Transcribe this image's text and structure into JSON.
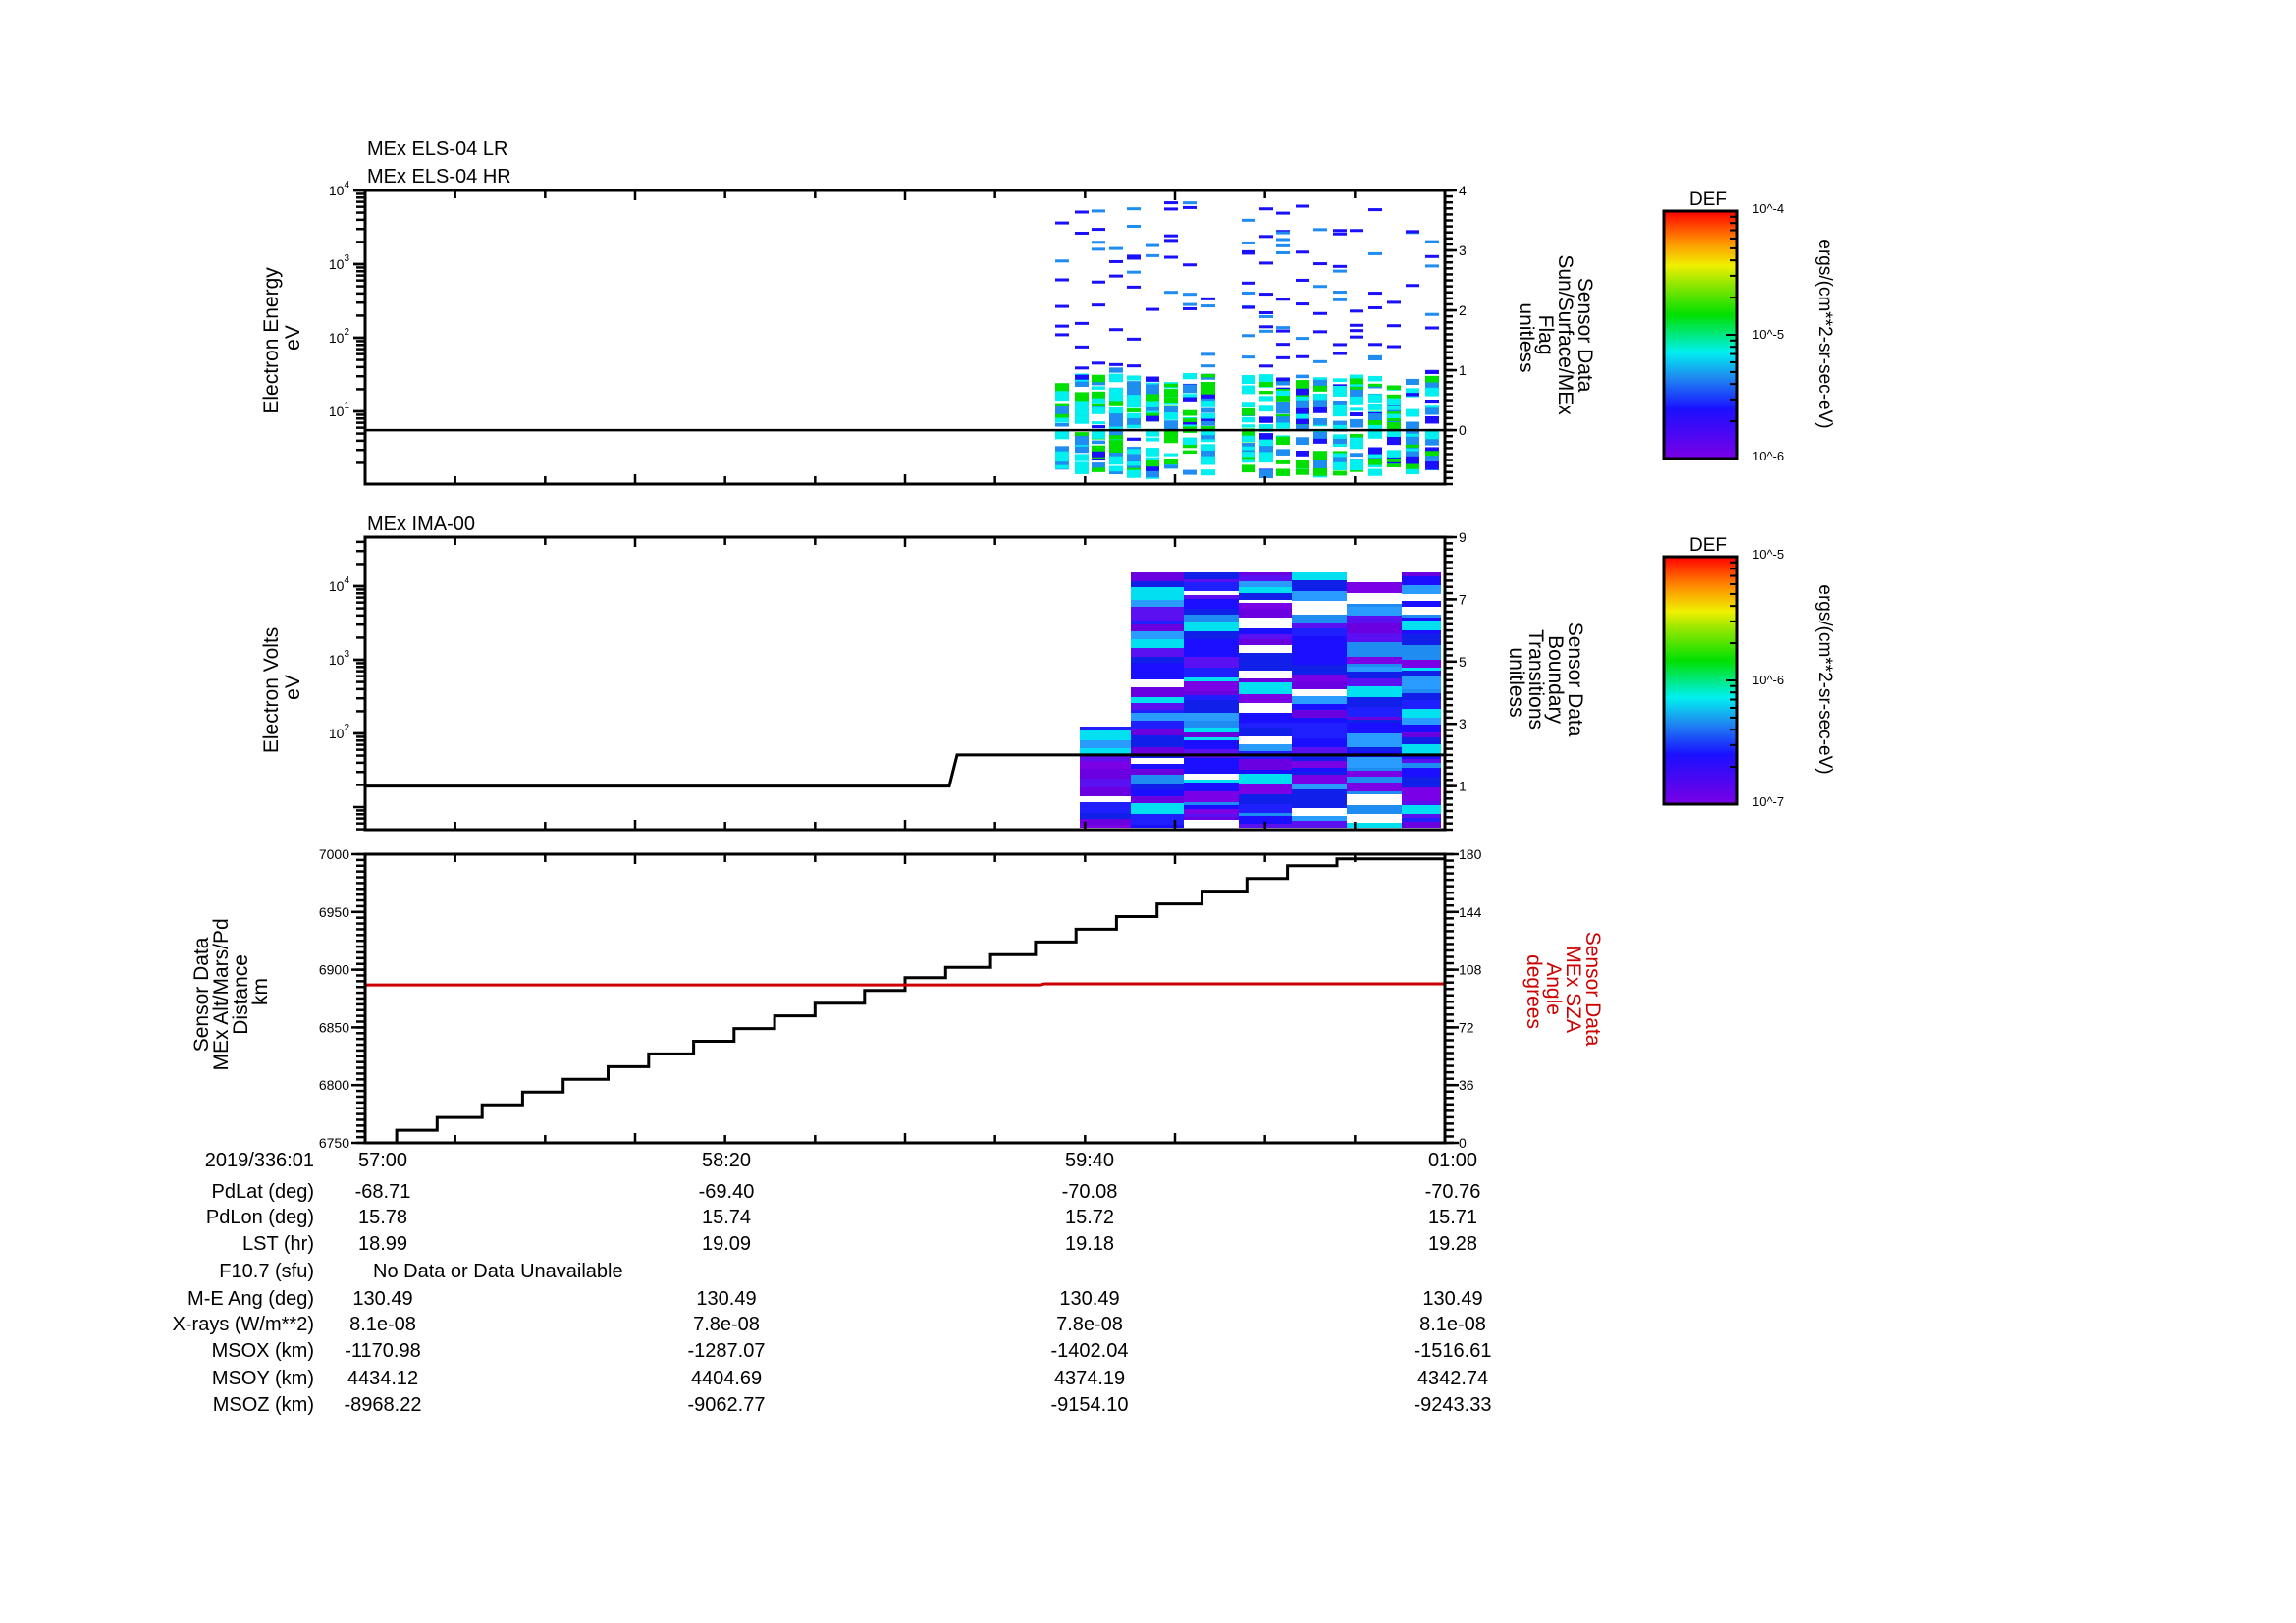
{
  "chart_data": [
    {
      "type": "heatmap",
      "panel": "top",
      "titles": [
        "MEx ELS-04 LR",
        "MEx ELS-04 HR"
      ],
      "ylabel": [
        "Electron Energy",
        "eV"
      ],
      "yscale": "log",
      "ylim": [
        1,
        10000
      ],
      "yticks": [
        "10^1",
        "10^2",
        "10^3",
        "10^4"
      ],
      "y2label": [
        "Sensor Data",
        "Sun/Surface/MEx",
        "Flag",
        "unitless"
      ],
      "y2lim": [
        -0.9,
        4
      ],
      "y2ticks": [
        0,
        1,
        2,
        3,
        4
      ],
      "line_series": {
        "name": "Sun/Surface/MEx Flag",
        "color": "#000000",
        "x": [
          "57:00",
          "01:00"
        ],
        "values": [
          0,
          0
        ]
      },
      "data_extent": {
        "x_start": "59:28",
        "x_end": "01:00",
        "energy_range_eV": [
          1,
          9000
        ]
      },
      "colorbar": {
        "label": "DEF",
        "units": "ergs/(cm**2-sr-sec-eV)",
        "min": "10^-6",
        "mid": "10^-5",
        "max": "10^-4"
      }
    },
    {
      "type": "heatmap",
      "panel": "middle",
      "titles": [
        "MEx IMA-00"
      ],
      "ylabel": [
        "Electron Volts",
        "eV"
      ],
      "yscale": "log",
      "ylim": [
        8,
        40000
      ],
      "yticks": [
        "10^2",
        "10^3",
        "10^4"
      ],
      "y2label": [
        "Sensor Data",
        "Boundary",
        "Transitions",
        "unitless"
      ],
      "y2lim": [
        -0.4,
        9
      ],
      "y2ticks": [
        1,
        3,
        5,
        7,
        9
      ],
      "line_series": {
        "name": "Boundary Transitions",
        "color": "#000000",
        "x": [
          "57:00",
          "59:04",
          "59:06",
          "01:00"
        ],
        "values": [
          1,
          1,
          2,
          2
        ]
      },
      "data_extent": {
        "x_start": "59:38",
        "x_end": "01:00",
        "energy_range_eV": [
          8,
          15000
        ]
      },
      "colorbar": {
        "label": "DEF",
        "units": "ergs/(cm**2-sr-sec-eV)",
        "min": "10^-7",
        "mid": "10^-6",
        "max": "10^-5"
      }
    },
    {
      "type": "line",
      "panel": "bottom",
      "ylabel": [
        "Sensor Data",
        "MEx Alt/Mars/Pd",
        "Distance",
        "km"
      ],
      "ylim": [
        6750,
        7000
      ],
      "yticks": [
        6750,
        6800,
        6850,
        6900,
        6950,
        7000
      ],
      "y2label": [
        "Sensor Data",
        "MEx SZA",
        "Angle",
        "degrees"
      ],
      "y2lim": [
        0,
        180
      ],
      "y2ticks": [
        0,
        36,
        72,
        108,
        144,
        180
      ],
      "series": [
        {
          "name": "MEx Alt/Mars/Pd Distance (km)",
          "color": "#000000",
          "axis": "left",
          "x_sec": [
            0,
            14,
            14,
            32,
            32,
            52,
            52,
            70,
            70,
            88,
            88,
            108,
            108,
            126,
            126,
            146,
            146,
            164,
            164,
            182,
            182,
            200,
            200,
            222,
            222,
            240,
            240,
            258,
            258,
            278,
            278,
            298,
            298,
            316,
            316,
            334,
            334,
            352,
            352,
            372,
            372,
            392,
            392,
            410,
            410,
            432,
            432,
            452,
            452,
            470,
            470,
            480
          ],
          "values": [
            6750,
            6750,
            6761,
            6761,
            6772,
            6772,
            6783,
            6783,
            6794,
            6794,
            6805,
            6805,
            6816,
            6816,
            6827,
            6827,
            6838,
            6838,
            6849,
            6849,
            6860,
            6860,
            6871,
            6871,
            6882,
            6882,
            6893,
            6893,
            6902,
            6902,
            6913,
            6913,
            6924,
            6924,
            6935,
            6935,
            6946,
            6946,
            6957,
            6957,
            6968,
            6968,
            6979,
            6979,
            6990,
            6990,
            6996,
            6996,
            6996,
            6996,
            6996,
            6996
          ]
        },
        {
          "name": "MEx SZA Angle (degrees)",
          "color": "#cc0000",
          "axis": "right",
          "x_sec": [
            0,
            300,
            302,
            480
          ],
          "values": [
            98.5,
            98.5,
            99.2,
            99.2
          ]
        }
      ]
    }
  ],
  "xaxis": {
    "date_label": "2019/336:01",
    "ticks": [
      "57:00",
      "58:20",
      "59:40",
      "01:00"
    ]
  },
  "info_table": {
    "rows": [
      {
        "label": "PdLat (deg)",
        "values": [
          "-68.71",
          "-69.40",
          "-70.08",
          "-70.76"
        ]
      },
      {
        "label": "PdLon (deg)",
        "values": [
          "15.78",
          "15.74",
          "15.72",
          "15.71"
        ]
      },
      {
        "label": "LST (hr)",
        "values": [
          "18.99",
          "19.09",
          "19.18",
          "19.28"
        ]
      },
      {
        "label": "F10.7 (sfu)",
        "note": "No Data or Data Unavailable"
      },
      {
        "label": "M-E Ang (deg)",
        "values": [
          "130.49",
          "130.49",
          "130.49",
          "130.49"
        ]
      },
      {
        "label": "X-rays (W/m**2)",
        "values": [
          "8.1e-08",
          "7.8e-08",
          "7.8e-08",
          "8.1e-08"
        ]
      },
      {
        "label": "MSOX (km)",
        "values": [
          "-1170.98",
          "-1287.07",
          "-1402.04",
          "-1516.61"
        ]
      },
      {
        "label": "MSOY (km)",
        "values": [
          "4434.12",
          "4404.69",
          "4374.19",
          "4342.74"
        ]
      },
      {
        "label": "MSOZ (km)",
        "values": [
          "-8968.22",
          "-9062.77",
          "-9154.10",
          "-9243.33"
        ]
      }
    ]
  },
  "colors": {
    "axis": "#000000",
    "sza": "#cc0000"
  }
}
